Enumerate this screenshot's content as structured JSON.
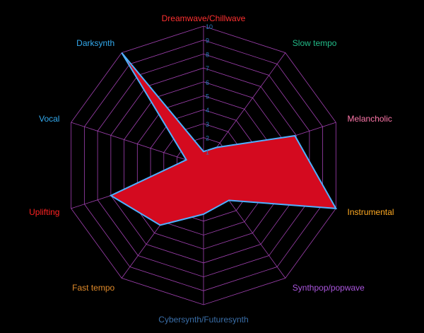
{
  "chart_data": {
    "type": "radar",
    "categories": [
      "Dreamwave/Chillwave",
      "Slow tempo",
      "Melancholic",
      "Instrumental",
      "Synthpop/popwave",
      "Cybersynth/Futuresynth",
      "Fast tempo",
      "Uplifting",
      "Vocal",
      "Darksynth"
    ],
    "series": [
      {
        "values": [
          1,
          1.6,
          6.9,
          10,
          3.1,
          3.5,
          5.3,
          7,
          1.3,
          10
        ],
        "fill_color": "#d40a1f",
        "stroke_color": "#4fb0ff"
      }
    ],
    "tick_labels": [
      "1",
      "2",
      "3",
      "4",
      "5",
      "6",
      "7",
      "8",
      "9",
      "10"
    ],
    "range": [
      0,
      10
    ],
    "grid": true,
    "label_colors": [
      "#ff3030",
      "#22bb88",
      "#ff77aa",
      "#ffaa22",
      "#aa55dd",
      "#3a6ea8",
      "#e08a2a",
      "#ff2222",
      "#33aaee",
      "#33aaee"
    ],
    "grid_color": "#a040b0",
    "tick_color": "#2a7ac0"
  }
}
